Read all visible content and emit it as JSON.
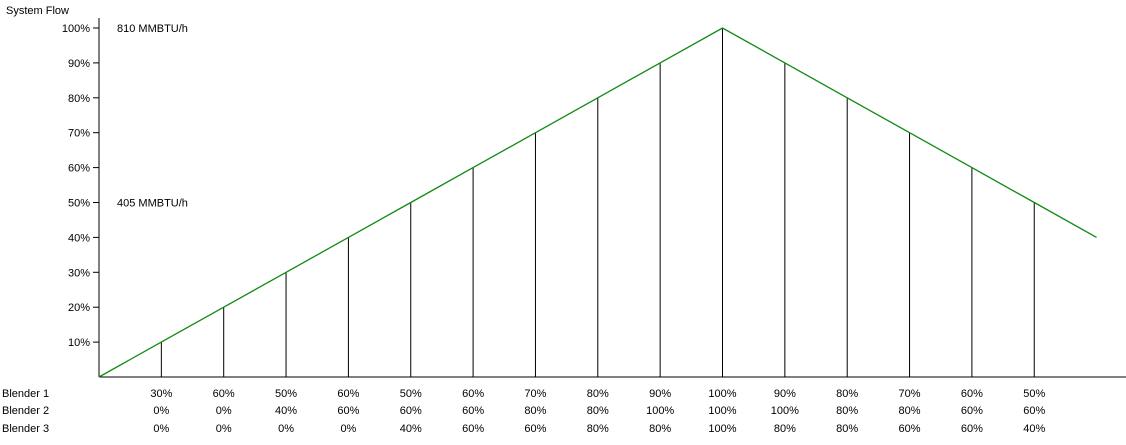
{
  "chart_data": {
    "type": "line",
    "ylabel": "System Flow",
    "ylim": [
      0,
      100
    ],
    "y_ticks": [
      "10%",
      "20%",
      "30%",
      "40%",
      "50%",
      "60%",
      "70%",
      "80%",
      "90%",
      "100%"
    ],
    "annotations": [
      {
        "text": "810 MMBTU/h",
        "y": 100
      },
      {
        "text": "405 MMBTU/h",
        "y": 50
      }
    ],
    "series": [
      {
        "values": [
          0,
          10,
          20,
          30,
          40,
          50,
          60,
          70,
          80,
          90,
          100,
          90,
          80,
          70,
          60,
          50,
          40
        ],
        "color": "#108a10"
      }
    ],
    "drop_line_values": [
      10,
      20,
      30,
      40,
      50,
      60,
      70,
      80,
      90,
      100,
      90,
      80,
      70,
      60,
      50
    ],
    "table": {
      "rows": [
        {
          "label": "Blender 1",
          "values": [
            "30%",
            "60%",
            "50%",
            "60%",
            "50%",
            "60%",
            "70%",
            "80%",
            "90%",
            "100%",
            "90%",
            "80%",
            "70%",
            "60%",
            "50%"
          ]
        },
        {
          "label": "Blender 2",
          "values": [
            "0%",
            "0%",
            "40%",
            "60%",
            "60%",
            "60%",
            "80%",
            "80%",
            "100%",
            "100%",
            "100%",
            "80%",
            "80%",
            "60%",
            "60%"
          ]
        },
        {
          "label": "Blender 3",
          "values": [
            "0%",
            "0%",
            "0%",
            "0%",
            "40%",
            "60%",
            "60%",
            "80%",
            "80%",
            "100%",
            "80%",
            "80%",
            "60%",
            "60%",
            "40%"
          ]
        }
      ]
    },
    "grid": false,
    "legend": "none"
  }
}
